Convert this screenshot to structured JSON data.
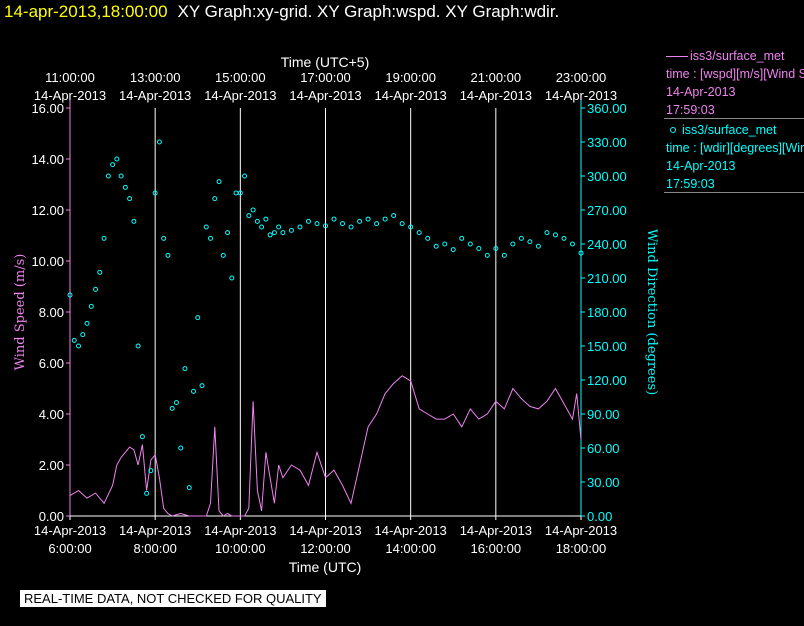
{
  "header": {
    "timestamp": "14-apr-2013,18:00:00",
    "graphs": "XY Graph:xy-grid.  XY Graph:wspd.  XY Graph:wdir."
  },
  "legend": {
    "wspd": {
      "source": "iss3/surface_met",
      "field": "time : [wspd][m/s][Wind Speed]",
      "date": "14-Apr-2013",
      "time": "17:59:03",
      "color": "#ee82ee"
    },
    "wdir": {
      "source": "iss3/surface_met",
      "field": "time : [wdir][degrees][Wind Direction]",
      "date": "14-Apr-2013",
      "time": "17:59:03",
      "color": "#00ffff"
    }
  },
  "notice": "REAL-TIME DATA, NOT CHECKED FOR QUALITY",
  "chart_data": {
    "type": "line",
    "grid": true,
    "top_axis": {
      "label": "Time (UTC+5)",
      "ticks": [
        {
          "time": "11:00:00",
          "date": "14-Apr-2013"
        },
        {
          "time": "13:00:00",
          "date": "14-Apr-2013"
        },
        {
          "time": "15:00:00",
          "date": "14-Apr-2013"
        },
        {
          "time": "17:00:00",
          "date": "14-Apr-2013"
        },
        {
          "time": "19:00:00",
          "date": "14-Apr-2013"
        },
        {
          "time": "21:00:00",
          "date": "14-Apr-2013"
        },
        {
          "time": "23:00:00",
          "date": "14-Apr-2013"
        }
      ]
    },
    "bottom_axis": {
      "label": "Time (UTC)",
      "ticks": [
        {
          "time": "6:00:00",
          "date": "14-Apr-2013"
        },
        {
          "time": "8:00:00",
          "date": "14-Apr-2013"
        },
        {
          "time": "10:00:00",
          "date": "14-Apr-2013"
        },
        {
          "time": "12:00:00",
          "date": "14-Apr-2013"
        },
        {
          "time": "14:00:00",
          "date": "14-Apr-2013"
        },
        {
          "time": "16:00:00",
          "date": "14-Apr-2013"
        },
        {
          "time": "18:00:00",
          "date": "14-Apr-2013"
        }
      ]
    },
    "xlim_utc_hours": [
      6,
      18
    ],
    "y_left": {
      "label": "Wind Speed (m/s)",
      "ylim": [
        0,
        16
      ],
      "ticks": [
        "0.00",
        "2.00",
        "4.00",
        "6.00",
        "8.00",
        "10.00",
        "12.00",
        "14.00",
        "16.00"
      ],
      "color": "#ee82ee"
    },
    "y_right": {
      "label": "Wind Direction (degrees)",
      "ylim": [
        0,
        360
      ],
      "ticks": [
        "0.00",
        "30.00",
        "60.00",
        "90.00",
        "120.00",
        "150.00",
        "180.00",
        "210.00",
        "240.00",
        "270.00",
        "300.00",
        "330.00",
        "360.00"
      ],
      "color": "#00ffff"
    },
    "series": [
      {
        "name": "iss3/surface_met wspd",
        "kind": "line",
        "axis": "left",
        "color": "#ee82ee",
        "x": [
          6.0,
          6.2,
          6.4,
          6.6,
          6.8,
          7.0,
          7.1,
          7.2,
          7.3,
          7.4,
          7.5,
          7.6,
          7.7,
          7.8,
          7.9,
          8.0,
          8.1,
          8.2,
          8.3,
          8.4,
          8.6,
          8.8,
          9.0,
          9.2,
          9.3,
          9.4,
          9.5,
          9.6,
          9.7,
          9.8,
          9.9,
          10.0,
          10.1,
          10.2,
          10.3,
          10.4,
          10.5,
          10.6,
          10.7,
          10.8,
          10.9,
          11.0,
          11.2,
          11.4,
          11.6,
          11.8,
          12.0,
          12.2,
          12.4,
          12.6,
          12.8,
          13.0,
          13.2,
          13.4,
          13.6,
          13.8,
          14.0,
          14.2,
          14.4,
          14.6,
          14.8,
          15.0,
          15.2,
          15.4,
          15.6,
          15.8,
          16.0,
          16.2,
          16.4,
          16.6,
          16.8,
          17.0,
          17.2,
          17.4,
          17.6,
          17.8,
          17.9,
          18.0
        ],
        "y": [
          0.8,
          1.0,
          0.7,
          0.9,
          0.5,
          1.2,
          2.0,
          2.3,
          2.5,
          2.7,
          2.6,
          2.0,
          2.8,
          1.0,
          2.2,
          2.4,
          1.5,
          0.3,
          0.1,
          0.0,
          0.1,
          0.0,
          0.0,
          0.0,
          0.5,
          3.5,
          0.2,
          0.0,
          0.1,
          0.0,
          0.0,
          0.0,
          0.0,
          0.3,
          4.5,
          1.0,
          0.2,
          2.5,
          1.5,
          0.5,
          2.0,
          1.5,
          2.0,
          1.8,
          1.2,
          2.5,
          1.5,
          1.8,
          1.2,
          0.5,
          2.0,
          3.5,
          4.0,
          4.8,
          5.2,
          5.5,
          5.3,
          4.2,
          4.0,
          3.8,
          3.8,
          4.0,
          3.5,
          4.2,
          3.8,
          4.0,
          4.5,
          4.2,
          5.0,
          4.6,
          4.3,
          4.2,
          4.5,
          5.0,
          4.4,
          3.8,
          4.8,
          3.0
        ]
      },
      {
        "name": "iss3/surface_met wdir",
        "kind": "scatter",
        "axis": "right",
        "color": "#00ffff",
        "x": [
          6.0,
          6.1,
          6.2,
          6.3,
          6.4,
          6.5,
          6.6,
          6.7,
          6.8,
          6.9,
          7.0,
          7.1,
          7.2,
          7.3,
          7.4,
          7.5,
          7.6,
          7.7,
          7.8,
          7.9,
          8.0,
          8.1,
          8.2,
          8.3,
          8.4,
          8.5,
          8.6,
          8.7,
          8.8,
          8.9,
          9.0,
          9.1,
          9.2,
          9.3,
          9.4,
          9.5,
          9.6,
          9.7,
          9.8,
          9.9,
          10.0,
          10.1,
          10.2,
          10.3,
          10.4,
          10.5,
          10.6,
          10.7,
          10.8,
          10.9,
          11.0,
          11.2,
          11.4,
          11.6,
          11.8,
          12.0,
          12.2,
          12.4,
          12.6,
          12.8,
          13.0,
          13.2,
          13.4,
          13.6,
          13.8,
          14.0,
          14.2,
          14.4,
          14.6,
          14.8,
          15.0,
          15.2,
          15.4,
          15.6,
          15.8,
          16.0,
          16.2,
          16.4,
          16.6,
          16.8,
          17.0,
          17.2,
          17.4,
          17.6,
          17.8,
          18.0
        ],
        "y": [
          195,
          155,
          150,
          160,
          170,
          185,
          200,
          215,
          245,
          300,
          310,
          315,
          300,
          290,
          280,
          260,
          150,
          70,
          20,
          40,
          285,
          330,
          245,
          230,
          95,
          100,
          60,
          130,
          25,
          110,
          175,
          115,
          255,
          245,
          280,
          295,
          230,
          250,
          210,
          285,
          285,
          300,
          265,
          270,
          260,
          255,
          262,
          248,
          250,
          255,
          250,
          252,
          255,
          260,
          258,
          256,
          262,
          258,
          255,
          260,
          262,
          258,
          262,
          265,
          258,
          255,
          250,
          245,
          238,
          240,
          235,
          245,
          240,
          236,
          230,
          236,
          230,
          240,
          245,
          242,
          238,
          250,
          248,
          245,
          240,
          232
        ]
      }
    ]
  }
}
